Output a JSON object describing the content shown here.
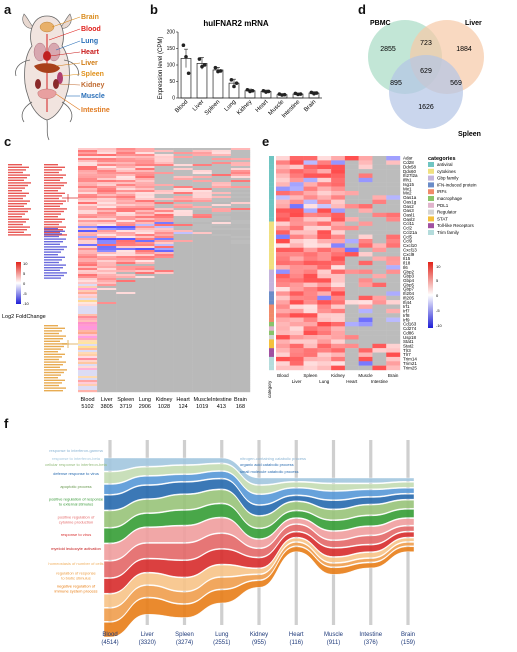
{
  "panels": {
    "a": "a",
    "b": "b",
    "c": "c",
    "d": "d",
    "e": "e",
    "f": "f"
  },
  "organs_a": [
    {
      "name": "Brain",
      "color": "#d98a1a"
    },
    {
      "name": "Blood",
      "color": "#e0201c"
    },
    {
      "name": "Lung",
      "color": "#2a6fb8"
    },
    {
      "name": "Heart",
      "color": "#c81818"
    },
    {
      "name": "Liver",
      "color": "#d07a10"
    },
    {
      "name": "Spleen",
      "color": "#e0901a"
    },
    {
      "name": "Kidney",
      "color": "#c06a30"
    },
    {
      "name": "Muscle",
      "color": "#2a6fb8"
    },
    {
      "name": "Intestine",
      "color": "#e07a20"
    }
  ],
  "chart_data": [
    {
      "type": "bar",
      "title": "huIFNAR2 mRNA",
      "ylabel": "Expression level (CPM)",
      "xlabel": "",
      "ylim": [
        0,
        200
      ],
      "yticks": [
        "0",
        "50",
        "100",
        "150",
        "200"
      ],
      "categories": [
        "Blood",
        "Liver",
        "Spleen",
        "Lung",
        "Kidney",
        "Heart",
        "Muscle",
        "Intestine",
        "Brain"
      ],
      "values": [
        120,
        105,
        85,
        45,
        22,
        20,
        10,
        12,
        15
      ],
      "errors": [
        28,
        18,
        8,
        12,
        5,
        4,
        3,
        3,
        4
      ],
      "points": [
        [
          160,
          125,
          75
        ],
        [
          118,
          95,
          100
        ],
        [
          92,
          80,
          82
        ],
        [
          55,
          35,
          45
        ],
        [
          25,
          20,
          22
        ],
        [
          22,
          18,
          20
        ],
        [
          12,
          9,
          10
        ],
        [
          14,
          11,
          12
        ],
        [
          17,
          13,
          15
        ]
      ]
    },
    {
      "type": "venn",
      "sets": [
        "PBMC",
        "Liver",
        "Spleen"
      ],
      "regions": {
        "pbmc_only": "2855",
        "liver_only": "1884",
        "spleen_only": "1626",
        "pbmc_liver": "723",
        "pbmc_spleen": "895",
        "liver_spleen": "569",
        "all": "629"
      },
      "colors": [
        "#a8dcc4",
        "#f7c9a6",
        "#b4c4e6"
      ]
    },
    {
      "type": "heatmap",
      "columns": [
        "Blood",
        "Liver",
        "Spleen",
        "Lung",
        "Kidney",
        "Heart",
        "Muscle",
        "Intestine",
        "Brain"
      ],
      "counts": [
        "5102",
        "3805",
        "3719",
        "2906",
        "1028",
        "124",
        "1019",
        "413",
        "168"
      ],
      "legend_title": "Log2 FoldChange",
      "legend_ticks": [
        "10",
        "5",
        "0",
        "-5",
        "-10"
      ]
    },
    {
      "type": "heatmap",
      "columns": [
        "Blood",
        "Liver",
        "Spleen",
        "Lung",
        "Kidney",
        "Heart",
        "Muscle",
        "Intestine",
        "Brain"
      ],
      "row_labels": [
        "Adar",
        "Cd28",
        "Ddx58",
        "Ddx60",
        "Ifi27l2a",
        "Ifih1",
        "Isg15",
        "Mx1",
        "Mx2",
        "Oas1a",
        "Oas1g",
        "Oas2",
        "Oas3",
        "Oasl1",
        "Oasl2",
        "Ccl11",
        "Ccl2",
        "Ccl21a",
        "Ccl5",
        "Ccl9",
        "Cxcl10",
        "Cxcl13",
        "Cxcl9",
        "Il15",
        "Il18",
        "Il6",
        "Gbp2",
        "Gbp3",
        "Gbp4",
        "Gbp5",
        "Gbp7",
        "Ifi204",
        "Ifi205",
        "Ifi44",
        "Irf1",
        "Irf7",
        "Irf8",
        "Irf9",
        "Cd163",
        "Cd274",
        "Cd86",
        "Usp18",
        "Stat1",
        "Stat2",
        "Tlr3",
        "Tlr7",
        "Trim14",
        "Trim21",
        "Trim25"
      ],
      "category_legend_title": "categories",
      "categories": [
        {
          "label": "antiviral",
          "color": "#6fc5c2"
        },
        {
          "label": "cytokines",
          "color": "#f0e080"
        },
        {
          "label": "Gbp family",
          "color": "#c4b4dc"
        },
        {
          "label": "IFN-induced protein",
          "color": "#6a8cc8"
        },
        {
          "label": "IRFs",
          "color": "#f08a6a"
        },
        {
          "label": "macrophage",
          "color": "#8ac46a"
        },
        {
          "label": "PDL1",
          "color": "#e0b4cc"
        },
        {
          "label": "Regulator",
          "color": "#d4d4d4"
        },
        {
          "label": "STAT",
          "color": "#f4c03c"
        },
        {
          "label": "Toll-like Receptors",
          "color": "#a050a0"
        },
        {
          "label": "Trim family",
          "color": "#b4dcdc"
        }
      ],
      "side_label": "category",
      "legend_ticks": [
        "10",
        "5",
        "0",
        "-5",
        "-10"
      ]
    },
    {
      "type": "area",
      "categories": [
        "Blood",
        "Liver",
        "Spleen",
        "Lung",
        "Kidney",
        "Heart",
        "Muscle",
        "Intestine",
        "Brain"
      ],
      "counts": [
        "(4514)",
        "(3320)",
        "(3274)",
        "(2551)",
        "(955)",
        "(116)",
        "(911)",
        "(376)",
        "(159)"
      ],
      "terms_left": [
        {
          "label": "response to interferon-gamma",
          "color": "#8ab4d4"
        },
        {
          "label": "response to interferon-beta",
          "color": "#a4c8e0"
        },
        {
          "label": "cellular response to interferon-beta",
          "color": "#94bc7c"
        },
        {
          "label": "defense response to virus",
          "color": "#2a6cb0"
        },
        {
          "label": "apoptotic process",
          "color": "#6a9a50"
        },
        {
          "label": "positive regulation of response to external stimulus",
          "color": "#3a9a3a"
        },
        {
          "label": "positive regulation of cytokine production",
          "color": "#e46a6a"
        },
        {
          "label": "response to virus",
          "color": "#d83030"
        },
        {
          "label": "myeloid leukocyte activation",
          "color": "#c41818"
        },
        {
          "label": "homeostasis of number of cells",
          "color": "#f0b060"
        },
        {
          "label": "regulation of response to biotic stimulus",
          "color": "#ec9a3c"
        },
        {
          "label": "negative regulation of immune system process",
          "color": "#e87c10"
        }
      ],
      "terms_right": [
        {
          "label": "nitrogen-containing catabolic process",
          "color": "#8ab4d4"
        },
        {
          "label": "organic acid catabolic process",
          "color": "#2a6cb0"
        },
        {
          "label": "small molecule catabolic process",
          "color": "#2a6cb0"
        }
      ],
      "band_colors": [
        "#a4c8e0",
        "#c4dcb4",
        "#5a9ad8",
        "#2a6cb0",
        "#9ac47c",
        "#3aa03a",
        "#f0a0a0",
        "#e46a6a",
        "#d83030",
        "#f7c48a",
        "#f0a050",
        "#e8801c"
      ],
      "band_values": [
        [
          8,
          5,
          4,
          3,
          4,
          2,
          3,
          3,
          2
        ],
        [
          7,
          5,
          5,
          4,
          5,
          3,
          4,
          3,
          3
        ],
        [
          6,
          5,
          4,
          4,
          6,
          4,
          5,
          4,
          3
        ],
        [
          9,
          8,
          7,
          6,
          6,
          3,
          5,
          4,
          3
        ],
        [
          10,
          8,
          9,
          8,
          7,
          5,
          6,
          6,
          5
        ],
        [
          9,
          8,
          9,
          8,
          6,
          4,
          6,
          6,
          5
        ],
        [
          10,
          9,
          10,
          9,
          5,
          3,
          5,
          5,
          4
        ],
        [
          10,
          9,
          10,
          9,
          5,
          4,
          4,
          5,
          3
        ],
        [
          9,
          8,
          10,
          9,
          6,
          3,
          5,
          4,
          3
        ],
        [
          8,
          7,
          8,
          7,
          3,
          2,
          3,
          3,
          2
        ],
        [
          8,
          7,
          7,
          7,
          3,
          2,
          2,
          2,
          2
        ],
        [
          9,
          10,
          8,
          8,
          4,
          3,
          4,
          3,
          3
        ]
      ]
    }
  ]
}
